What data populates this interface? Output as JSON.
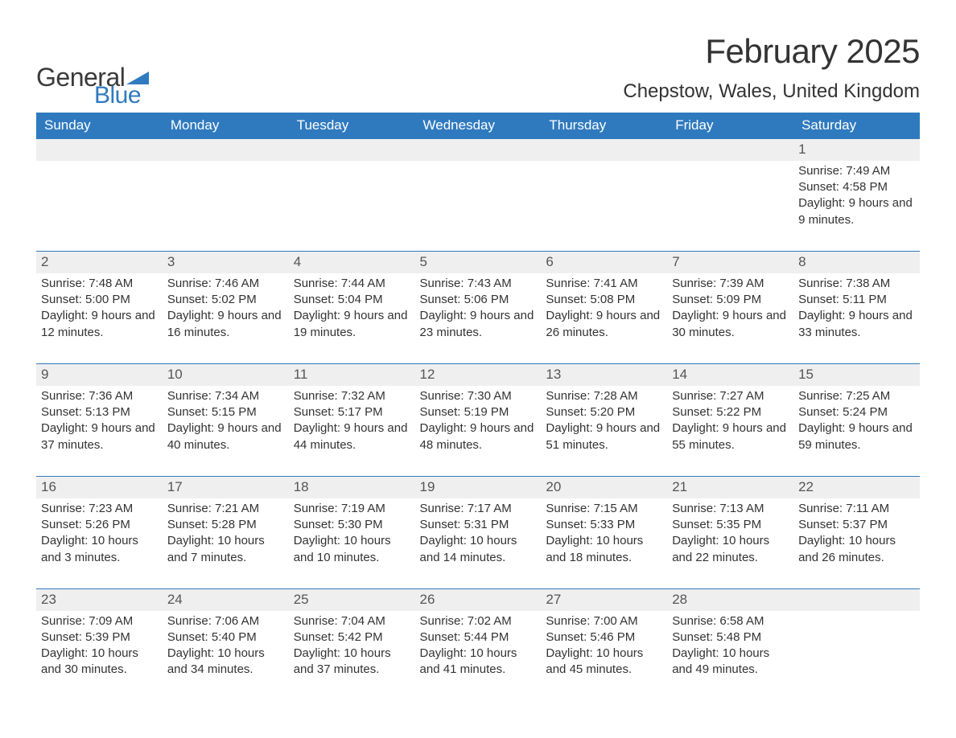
{
  "logo": {
    "general": "General",
    "blue": "Blue"
  },
  "title": "February 2025",
  "location": "Chepstow, Wales, United Kingdom",
  "colors": {
    "header_bg": "#2f7abf",
    "header_text": "#ffffff",
    "daynum_bg": "#efefef",
    "row_border": "#2f7abf",
    "body_text": "#333333",
    "logo_gray": "#3b3b3b",
    "logo_blue": "#2f7abf",
    "page_bg": "#ffffff"
  },
  "typography": {
    "title_fontsize": 42,
    "location_fontsize": 24,
    "dayheader_fontsize": 17,
    "daynum_fontsize": 17,
    "body_fontsize": 15,
    "font_family": "Segoe UI"
  },
  "day_headers": [
    "Sunday",
    "Monday",
    "Tuesday",
    "Wednesday",
    "Thursday",
    "Friday",
    "Saturday"
  ],
  "weeks": [
    [
      null,
      null,
      null,
      null,
      null,
      null,
      {
        "n": "1",
        "sunrise": "7:49 AM",
        "sunset": "4:58 PM",
        "daylight": "9 hours and 9 minutes."
      }
    ],
    [
      {
        "n": "2",
        "sunrise": "7:48 AM",
        "sunset": "5:00 PM",
        "daylight": "9 hours and 12 minutes."
      },
      {
        "n": "3",
        "sunrise": "7:46 AM",
        "sunset": "5:02 PM",
        "daylight": "9 hours and 16 minutes."
      },
      {
        "n": "4",
        "sunrise": "7:44 AM",
        "sunset": "5:04 PM",
        "daylight": "9 hours and 19 minutes."
      },
      {
        "n": "5",
        "sunrise": "7:43 AM",
        "sunset": "5:06 PM",
        "daylight": "9 hours and 23 minutes."
      },
      {
        "n": "6",
        "sunrise": "7:41 AM",
        "sunset": "5:08 PM",
        "daylight": "9 hours and 26 minutes."
      },
      {
        "n": "7",
        "sunrise": "7:39 AM",
        "sunset": "5:09 PM",
        "daylight": "9 hours and 30 minutes."
      },
      {
        "n": "8",
        "sunrise": "7:38 AM",
        "sunset": "5:11 PM",
        "daylight": "9 hours and 33 minutes."
      }
    ],
    [
      {
        "n": "9",
        "sunrise": "7:36 AM",
        "sunset": "5:13 PM",
        "daylight": "9 hours and 37 minutes."
      },
      {
        "n": "10",
        "sunrise": "7:34 AM",
        "sunset": "5:15 PM",
        "daylight": "9 hours and 40 minutes."
      },
      {
        "n": "11",
        "sunrise": "7:32 AM",
        "sunset": "5:17 PM",
        "daylight": "9 hours and 44 minutes."
      },
      {
        "n": "12",
        "sunrise": "7:30 AM",
        "sunset": "5:19 PM",
        "daylight": "9 hours and 48 minutes."
      },
      {
        "n": "13",
        "sunrise": "7:28 AM",
        "sunset": "5:20 PM",
        "daylight": "9 hours and 51 minutes."
      },
      {
        "n": "14",
        "sunrise": "7:27 AM",
        "sunset": "5:22 PM",
        "daylight": "9 hours and 55 minutes."
      },
      {
        "n": "15",
        "sunrise": "7:25 AM",
        "sunset": "5:24 PM",
        "daylight": "9 hours and 59 minutes."
      }
    ],
    [
      {
        "n": "16",
        "sunrise": "7:23 AM",
        "sunset": "5:26 PM",
        "daylight": "10 hours and 3 minutes."
      },
      {
        "n": "17",
        "sunrise": "7:21 AM",
        "sunset": "5:28 PM",
        "daylight": "10 hours and 7 minutes."
      },
      {
        "n": "18",
        "sunrise": "7:19 AM",
        "sunset": "5:30 PM",
        "daylight": "10 hours and 10 minutes."
      },
      {
        "n": "19",
        "sunrise": "7:17 AM",
        "sunset": "5:31 PM",
        "daylight": "10 hours and 14 minutes."
      },
      {
        "n": "20",
        "sunrise": "7:15 AM",
        "sunset": "5:33 PM",
        "daylight": "10 hours and 18 minutes."
      },
      {
        "n": "21",
        "sunrise": "7:13 AM",
        "sunset": "5:35 PM",
        "daylight": "10 hours and 22 minutes."
      },
      {
        "n": "22",
        "sunrise": "7:11 AM",
        "sunset": "5:37 PM",
        "daylight": "10 hours and 26 minutes."
      }
    ],
    [
      {
        "n": "23",
        "sunrise": "7:09 AM",
        "sunset": "5:39 PM",
        "daylight": "10 hours and 30 minutes."
      },
      {
        "n": "24",
        "sunrise": "7:06 AM",
        "sunset": "5:40 PM",
        "daylight": "10 hours and 34 minutes."
      },
      {
        "n": "25",
        "sunrise": "7:04 AM",
        "sunset": "5:42 PM",
        "daylight": "10 hours and 37 minutes."
      },
      {
        "n": "26",
        "sunrise": "7:02 AM",
        "sunset": "5:44 PM",
        "daylight": "10 hours and 41 minutes."
      },
      {
        "n": "27",
        "sunrise": "7:00 AM",
        "sunset": "5:46 PM",
        "daylight": "10 hours and 45 minutes."
      },
      {
        "n": "28",
        "sunrise": "6:58 AM",
        "sunset": "5:48 PM",
        "daylight": "10 hours and 49 minutes."
      },
      null
    ]
  ],
  "labels": {
    "sunrise": "Sunrise: ",
    "sunset": "Sunset: ",
    "daylight": "Daylight: "
  }
}
